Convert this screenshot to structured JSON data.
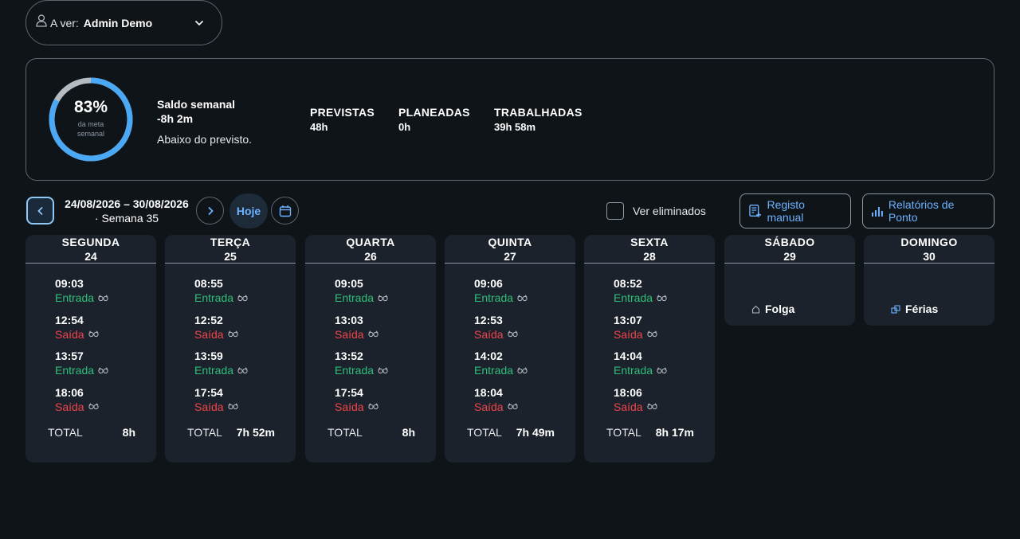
{
  "viewer": {
    "label": "A ver:",
    "value": "Admin Demo"
  },
  "summary": {
    "percent": "83%",
    "percent_value": 0.83,
    "percent_caption": "da meta semanal",
    "saldo_title": "Saldo semanal",
    "saldo_value": "-8h 2m",
    "saldo_desc": "Abaixo do previsto.",
    "stats": [
      {
        "label": "PREVISTAS",
        "value": "48h"
      },
      {
        "label": "PLANEADAS",
        "value": "0h"
      },
      {
        "label": "TRABALHADAS",
        "value": "39h 58m"
      }
    ]
  },
  "toolbar": {
    "range": "24/08/2026 – 30/08/2026",
    "week": "· Semana 35",
    "today_label": "Hoje",
    "show_deleted_label": "Ver eliminados",
    "manual_label": "Registo manual",
    "reports_label": "Relatórios de Ponto"
  },
  "colors": {
    "accent": "#6cb2ff",
    "entrada": "#2fbf7a",
    "saida": "#f0444c",
    "ring": "#4aa8f5"
  },
  "days": [
    {
      "name": "SEGUNDA",
      "date": "24",
      "total_label": "TOTAL",
      "total": "8h",
      "punches": [
        {
          "time": "09:03",
          "type": "Entrada"
        },
        {
          "time": "12:54",
          "type": "Saída"
        },
        {
          "time": "13:57",
          "type": "Entrada"
        },
        {
          "time": "18:06",
          "type": "Saída"
        }
      ]
    },
    {
      "name": "TERÇA",
      "date": "25",
      "total_label": "TOTAL",
      "total": "7h 52m",
      "punches": [
        {
          "time": "08:55",
          "type": "Entrada"
        },
        {
          "time": "12:52",
          "type": "Saída"
        },
        {
          "time": "13:59",
          "type": "Entrada"
        },
        {
          "time": "17:54",
          "type": "Saída"
        }
      ]
    },
    {
      "name": "QUARTA",
      "date": "26",
      "total_label": "TOTAL",
      "total": "8h",
      "punches": [
        {
          "time": "09:05",
          "type": "Entrada"
        },
        {
          "time": "13:03",
          "type": "Saída"
        },
        {
          "time": "13:52",
          "type": "Entrada"
        },
        {
          "time": "17:54",
          "type": "Saída"
        }
      ]
    },
    {
      "name": "QUINTA",
      "date": "27",
      "total_label": "TOTAL",
      "total": "7h 49m",
      "punches": [
        {
          "time": "09:06",
          "type": "Entrada"
        },
        {
          "time": "12:53",
          "type": "Saída"
        },
        {
          "time": "14:02",
          "type": "Entrada"
        },
        {
          "time": "18:04",
          "type": "Saída"
        }
      ]
    },
    {
      "name": "SEXTA",
      "date": "28",
      "total_label": "TOTAL",
      "total": "8h 17m",
      "punches": [
        {
          "time": "08:52",
          "type": "Entrada"
        },
        {
          "time": "13:07",
          "type": "Saída"
        },
        {
          "time": "14:04",
          "type": "Entrada"
        },
        {
          "time": "18:06",
          "type": "Saída"
        }
      ]
    },
    {
      "name": "SÁBADO",
      "date": "29",
      "off_label": "Folga",
      "off_icon": "home-icon"
    },
    {
      "name": "DOMINGO",
      "date": "30",
      "off_label": "Férias",
      "off_icon": "vacation-icon"
    }
  ]
}
